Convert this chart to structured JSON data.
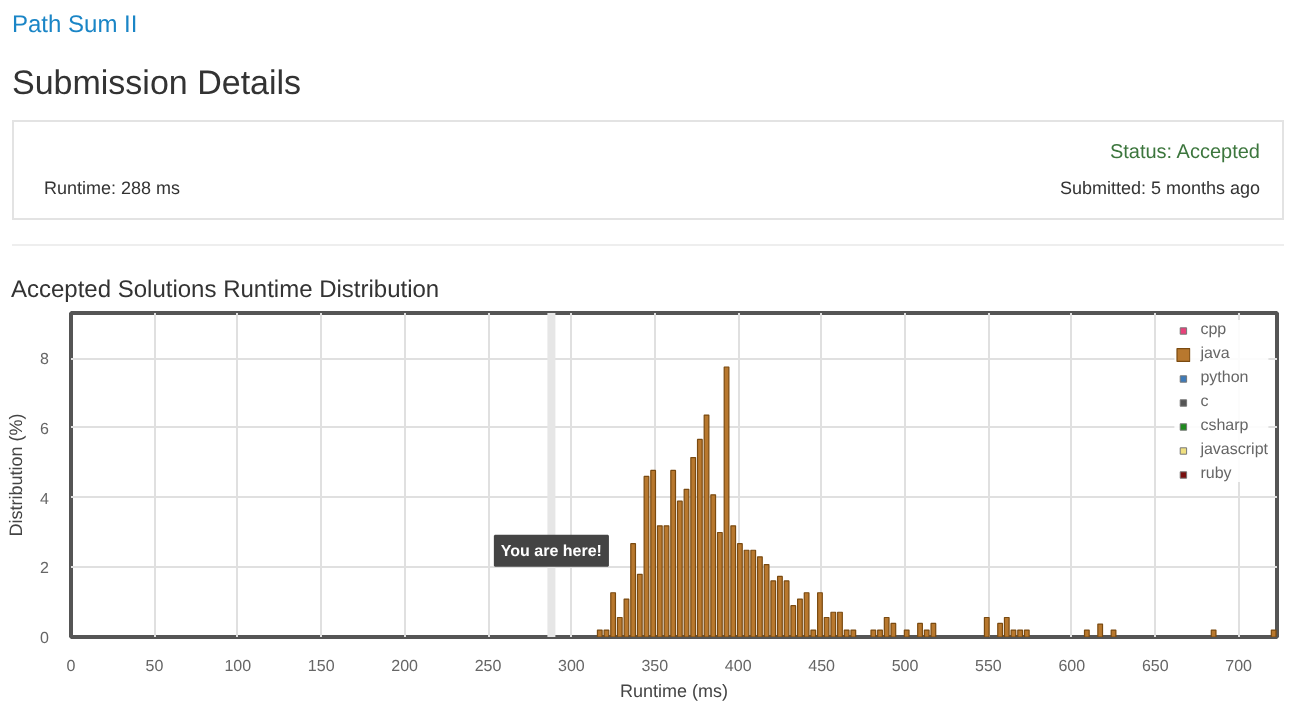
{
  "chart_data": {
    "type": "bar",
    "title": "Accepted Solutions Runtime Distribution",
    "xlabel": "Runtime (ms)",
    "ylabel": "Distribution (%)",
    "annotations": [
      "Path Sum II",
      "Submission Details",
      "Status: Accepted",
      "Runtime: 288 ms",
      "Submitted: 5 months ago"
    ],
    "xlim": [
      0,
      723
    ],
    "xticks": [
      0,
      50,
      100,
      150,
      200,
      250,
      300,
      350,
      400,
      450,
      500,
      550,
      600,
      650,
      700
    ],
    "ylim": [
      0,
      9.3
    ],
    "yticks": [
      0,
      2,
      4,
      6,
      8
    ],
    "grid": true,
    "legend": "top right",
    "ref_lines": [
      {
        "axis": "x",
        "value": 288,
        "label": "You are here!",
        "color": "#e6e6e6"
      }
    ],
    "series": [
      {
        "name": "cpp",
        "color": "#e8417a"
      },
      {
        "name": "java",
        "color": "#b8782e",
        "x": [
          317,
          321,
          325,
          329,
          333,
          337,
          341,
          345,
          349,
          353,
          357,
          361,
          365,
          369,
          373,
          377,
          381,
          385,
          389,
          393,
          397,
          401,
          405,
          409,
          413,
          417,
          421,
          425,
          429,
          433,
          437,
          441,
          445,
          449,
          453,
          457,
          461,
          465,
          469,
          481,
          485,
          489,
          493,
          501,
          509,
          513,
          517,
          549,
          557,
          561,
          565,
          569,
          573,
          609,
          617,
          625,
          685,
          721
        ],
        "values": [
          0.2,
          0.2,
          1.27,
          0.56,
          1.09,
          2.68,
          1.8,
          4.61,
          4.78,
          3.19,
          3.19,
          4.78,
          3.9,
          4.24,
          5.15,
          5.67,
          6.37,
          4.08,
          3.0,
          7.75,
          3.19,
          2.68,
          2.49,
          2.49,
          2.3,
          2.08,
          1.61,
          1.74,
          1.61,
          0.9,
          1.09,
          1.27,
          0.2,
          1.27,
          0.56,
          0.71,
          0.71,
          0.2,
          0.2,
          0.2,
          0.2,
          0.56,
          0.39,
          0.2,
          0.39,
          0.2,
          0.39,
          0.56,
          0.39,
          0.56,
          0.2,
          0.2,
          0.2,
          0.2,
          0.37,
          0.2,
          0.2,
          0.2
        ]
      },
      {
        "name": "python",
        "color": "#3d7ab8"
      },
      {
        "name": "c",
        "color": "#555555"
      },
      {
        "name": "csharp",
        "color": "#1e8a1e"
      },
      {
        "name": "javascript",
        "color": "#f0e080"
      },
      {
        "name": "ruby",
        "color": "#7a1010"
      }
    ]
  }
}
